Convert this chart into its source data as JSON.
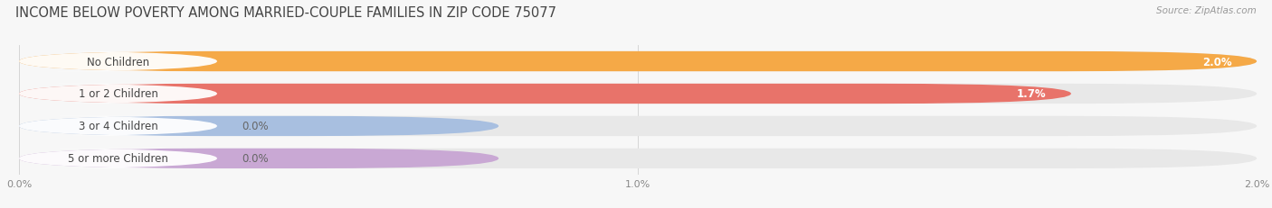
{
  "title": "INCOME BELOW POVERTY AMONG MARRIED-COUPLE FAMILIES IN ZIP CODE 75077",
  "source": "Source: ZipAtlas.com",
  "categories": [
    "No Children",
    "1 or 2 Children",
    "3 or 4 Children",
    "5 or more Children"
  ],
  "values": [
    2.0,
    1.7,
    0.0,
    0.0
  ],
  "bar_colors": [
    "#F5A947",
    "#E8736A",
    "#A8BFE0",
    "#C9A8D4"
  ],
  "track_color": "#E8E8E8",
  "label_bg_color": "#FFFFFF",
  "value_labels": [
    "2.0%",
    "1.7%",
    "0.0%",
    "0.0%"
  ],
  "xlim": [
    0.0,
    2.0
  ],
  "xticks": [
    0.0,
    1.0,
    2.0
  ],
  "xtick_labels": [
    "0.0%",
    "1.0%",
    "2.0%"
  ],
  "bar_height": 0.62,
  "background_color": "#F7F7F7",
  "title_fontsize": 10.5,
  "label_fontsize": 8.5,
  "value_fontsize": 8.5,
  "tick_fontsize": 8,
  "source_fontsize": 7.5
}
